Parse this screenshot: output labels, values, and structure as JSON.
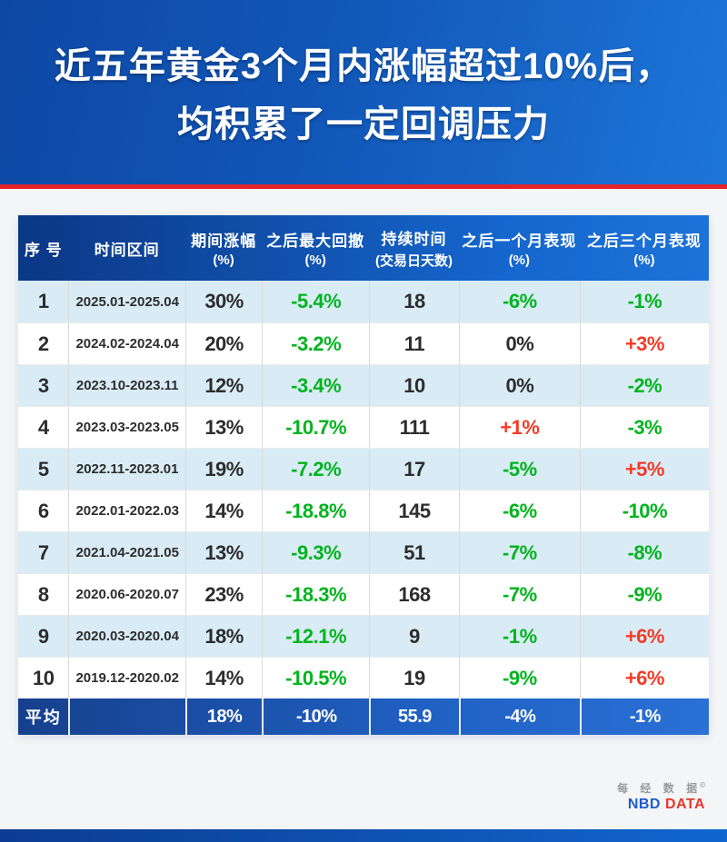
{
  "banner": {
    "title_line1": "近五年黄金3个月内涨幅超过10%后，",
    "title_line2": "均积累了一定回调压力"
  },
  "table": {
    "headers": [
      {
        "main": "序 号",
        "sub": ""
      },
      {
        "main": "时间区间",
        "sub": ""
      },
      {
        "main": "期间涨幅",
        "sub": "(%)"
      },
      {
        "main": "之后最大回撤",
        "sub": "(%)"
      },
      {
        "main": "持续时间",
        "sub": "(交易日天数)"
      },
      {
        "main": "之后一个月表现",
        "sub": "(%)"
      },
      {
        "main": "之后三个月表现",
        "sub": "(%)"
      }
    ],
    "rows": [
      {
        "no": "1",
        "period": "2025.01-2025.04",
        "gain": "30%",
        "drawdown": "-5.4%",
        "drawdown_color": "green",
        "days": "18",
        "one_month": "-6%",
        "one_month_color": "green",
        "three_month": "-1%",
        "three_month_color": "green"
      },
      {
        "no": "2",
        "period": "2024.02-2024.04",
        "gain": "20%",
        "drawdown": "-3.2%",
        "drawdown_color": "green",
        "days": "11",
        "one_month": "0%",
        "one_month_color": "dark",
        "three_month": "+3%",
        "three_month_color": "red"
      },
      {
        "no": "3",
        "period": "2023.10-2023.11",
        "gain": "12%",
        "drawdown": "-3.4%",
        "drawdown_color": "green",
        "days": "10",
        "one_month": "0%",
        "one_month_color": "dark",
        "three_month": "-2%",
        "three_month_color": "green"
      },
      {
        "no": "4",
        "period": "2023.03-2023.05",
        "gain": "13%",
        "drawdown": "-10.7%",
        "drawdown_color": "green",
        "days": "111",
        "one_month": "+1%",
        "one_month_color": "red",
        "three_month": "-3%",
        "three_month_color": "green"
      },
      {
        "no": "5",
        "period": "2022.11-2023.01",
        "gain": "19%",
        "drawdown": "-7.2%",
        "drawdown_color": "green",
        "days": "17",
        "one_month": "-5%",
        "one_month_color": "green",
        "three_month": "+5%",
        "three_month_color": "red"
      },
      {
        "no": "6",
        "period": "2022.01-2022.03",
        "gain": "14%",
        "drawdown": "-18.8%",
        "drawdown_color": "green",
        "days": "145",
        "one_month": "-6%",
        "one_month_color": "green",
        "three_month": "-10%",
        "three_month_color": "green"
      },
      {
        "no": "7",
        "period": "2021.04-2021.05",
        "gain": "13%",
        "drawdown": "-9.3%",
        "drawdown_color": "green",
        "days": "51",
        "one_month": "-7%",
        "one_month_color": "green",
        "three_month": "-8%",
        "three_month_color": "green"
      },
      {
        "no": "8",
        "period": "2020.06-2020.07",
        "gain": "23%",
        "drawdown": "-18.3%",
        "drawdown_color": "green",
        "days": "168",
        "one_month": "-7%",
        "one_month_color": "green",
        "three_month": "-9%",
        "three_month_color": "green"
      },
      {
        "no": "9",
        "period": "2020.03-2020.04",
        "gain": "18%",
        "drawdown": "-12.1%",
        "drawdown_color": "green",
        "days": "9",
        "one_month": "-1%",
        "one_month_color": "green",
        "three_month": "+6%",
        "three_month_color": "red"
      },
      {
        "no": "10",
        "period": "2019.12-2020.02",
        "gain": "14%",
        "drawdown": "-10.5%",
        "drawdown_color": "green",
        "days": "19",
        "one_month": "-9%",
        "one_month_color": "green",
        "three_month": "+6%",
        "three_month_color": "red"
      }
    ],
    "average": {
      "label": "平均",
      "period": "",
      "gain": "18%",
      "drawdown": "-10%",
      "days": "55.9",
      "one_month": "-4%",
      "three_month": "-1%"
    }
  },
  "footer": {
    "logo_cn": "每 经 数 据",
    "logo_mark": "©",
    "logo_nbd": "NBD",
    "logo_data": "DATA"
  },
  "colors": {
    "banner_blue_dark": "#0e48a4",
    "banner_blue_light": "#1e75d9",
    "red_line": "#e3242b",
    "header_row_dark": "#0b3786",
    "header_row_light": "#1d73d8",
    "stripe_row": "#d9ecf6",
    "positive_red": "#f53a26",
    "negative_green": "#00b41e",
    "dark_text": "#2d2d2d",
    "logo_blue": "#1f5ad2",
    "logo_red": "#e8362d"
  },
  "chart_data": {
    "type": "table",
    "title": "近五年黄金3个月内涨幅超过10%后，均积累了一定回调压力",
    "columns": [
      "序号",
      "时间区间",
      "期间涨幅(%)",
      "之后最大回撤(%)",
      "持续时间(交易日天数)",
      "之后一个月表现(%)",
      "之后三个月表现(%)"
    ],
    "rows": [
      [
        "1",
        "2025.01-2025.04",
        "30%",
        "-5.4%",
        "18",
        "-6%",
        "-1%"
      ],
      [
        "2",
        "2024.02-2024.04",
        "20%",
        "-3.2%",
        "11",
        "0%",
        "+3%"
      ],
      [
        "3",
        "2023.10-2023.11",
        "12%",
        "-3.4%",
        "10",
        "0%",
        "-2%"
      ],
      [
        "4",
        "2023.03-2023.05",
        "13%",
        "-10.7%",
        "111",
        "+1%",
        "-3%"
      ],
      [
        "5",
        "2022.11-2023.01",
        "19%",
        "-7.2%",
        "17",
        "-5%",
        "+5%"
      ],
      [
        "6",
        "2022.01-2022.03",
        "14%",
        "-18.8%",
        "145",
        "-6%",
        "-10%"
      ],
      [
        "7",
        "2021.04-2021.05",
        "13%",
        "-9.3%",
        "51",
        "-7%",
        "-8%"
      ],
      [
        "8",
        "2020.06-2020.07",
        "23%",
        "-18.3%",
        "168",
        "-7%",
        "-9%"
      ],
      [
        "9",
        "2020.03-2020.04",
        "18%",
        "-12.1%",
        "9",
        "-1%",
        "+6%"
      ],
      [
        "10",
        "2019.12-2020.02",
        "14%",
        "-10.5%",
        "19",
        "-9%",
        "+6%"
      ]
    ],
    "average_row": [
      "平均",
      "",
      "18%",
      "-10%",
      "55.9",
      "-4%",
      "-1%"
    ]
  }
}
